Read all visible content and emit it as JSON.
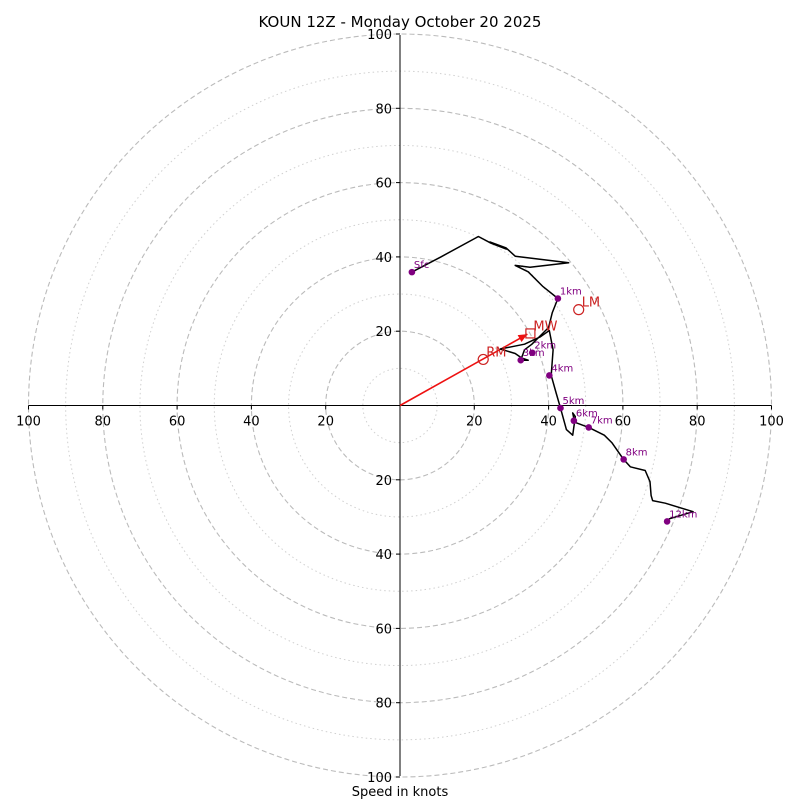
{
  "chart_data": {
    "type": "hodograph",
    "title": "KOUN 12Z - Monday October 20 2025",
    "xlabel": "Speed in knots",
    "range": [
      -100,
      100
    ],
    "ring_major": [
      20,
      40,
      60,
      80,
      100
    ],
    "ring_minor": [
      10,
      30,
      50,
      70,
      90
    ],
    "x_tick_labels": [
      "100",
      "80",
      "60",
      "40",
      "20",
      "20",
      "40",
      "60",
      "80",
      "100"
    ],
    "x_tick_values": [
      -100,
      -80,
      -60,
      -40,
      -20,
      20,
      40,
      60,
      80,
      100
    ],
    "y_tick_labels": [
      "100",
      "80",
      "60",
      "40",
      "20",
      "20",
      "40",
      "60",
      "80",
      "100"
    ],
    "y_tick_values": [
      100,
      80,
      60,
      40,
      20,
      -20,
      -40,
      -60,
      -80,
      -100
    ],
    "colors": {
      "trace": "#000000",
      "markers": "#800080",
      "storm_motion": "#cc2222",
      "shear_vector": "#ee1111",
      "ring_major": "#bbbbbb",
      "ring_minor": "#d0d0d0",
      "axis": "#000000"
    },
    "trace": [
      [
        3.2,
        35.9
      ],
      [
        11,
        40
      ],
      [
        21.1,
        45.5
      ],
      [
        24.5,
        43.7
      ],
      [
        28.6,
        42.1
      ],
      [
        24.2,
        44
      ],
      [
        28.6,
        42.4
      ],
      [
        31,
        40.2
      ],
      [
        45.4,
        38.4
      ],
      [
        35,
        37.2
      ],
      [
        31,
        37.7
      ],
      [
        34.5,
        36
      ],
      [
        38.5,
        32
      ],
      [
        42.5,
        28.8
      ],
      [
        41,
        25
      ],
      [
        40,
        21
      ],
      [
        38,
        19
      ],
      [
        35.5,
        16.5
      ],
      [
        33.5,
        15
      ],
      [
        32.5,
        12.2
      ],
      [
        34.5,
        12.2
      ],
      [
        32.7,
        12.8
      ],
      [
        31,
        14
      ],
      [
        27,
        15.2
      ],
      [
        30,
        15.8
      ],
      [
        33.5,
        16.5
      ],
      [
        37.8,
        18.5
      ],
      [
        40.2,
        20.2
      ],
      [
        41.2,
        15
      ],
      [
        40.7,
        8.1
      ],
      [
        42,
        3.5
      ],
      [
        43.2,
        -0.7
      ],
      [
        44.8,
        -6.5
      ],
      [
        46.5,
        -8
      ],
      [
        47.2,
        -3
      ],
      [
        46.5,
        -2
      ],
      [
        47,
        -4.5
      ],
      [
        50.8,
        -5.9
      ],
      [
        55,
        -8
      ],
      [
        57,
        -10
      ],
      [
        60.2,
        -14.5
      ],
      [
        62,
        -16.5
      ],
      [
        66,
        -17.5
      ],
      [
        67.3,
        -20.5
      ],
      [
        67.6,
        -24.2
      ],
      [
        68,
        -25.6
      ],
      [
        71.4,
        -26.3
      ],
      [
        78.9,
        -28.6
      ],
      [
        72.5,
        -30.5
      ],
      [
        71.9,
        -31.2
      ]
    ],
    "height_markers": [
      {
        "label": "Sfc",
        "u": 3.2,
        "v": 35.9
      },
      {
        "label": "1km",
        "u": 42.5,
        "v": 28.8
      },
      {
        "label": "2km",
        "u": 35.6,
        "v": 14.2
      },
      {
        "label": "3km",
        "u": 32.5,
        "v": 12.2
      },
      {
        "label": "4km",
        "u": 40.2,
        "v": 8.1
      },
      {
        "label": "5km",
        "u": 43.2,
        "v": -0.7
      },
      {
        "label": "6km",
        "u": 46.8,
        "v": -4.1
      },
      {
        "label": "7km",
        "u": 50.8,
        "v": -5.9
      },
      {
        "label": "8km",
        "u": 60.2,
        "v": -14.5
      },
      {
        "label": "12km",
        "u": 71.9,
        "v": -31.2
      }
    ],
    "storm_motion": [
      {
        "label": "RM",
        "u": 22.4,
        "v": 12.4
      },
      {
        "label": "LM",
        "u": 48.1,
        "v": 25.8
      },
      {
        "label": "MW",
        "u": 35.1,
        "v": 19.4
      }
    ],
    "shear_vector": {
      "u": 34.3,
      "v": 19.2
    }
  }
}
